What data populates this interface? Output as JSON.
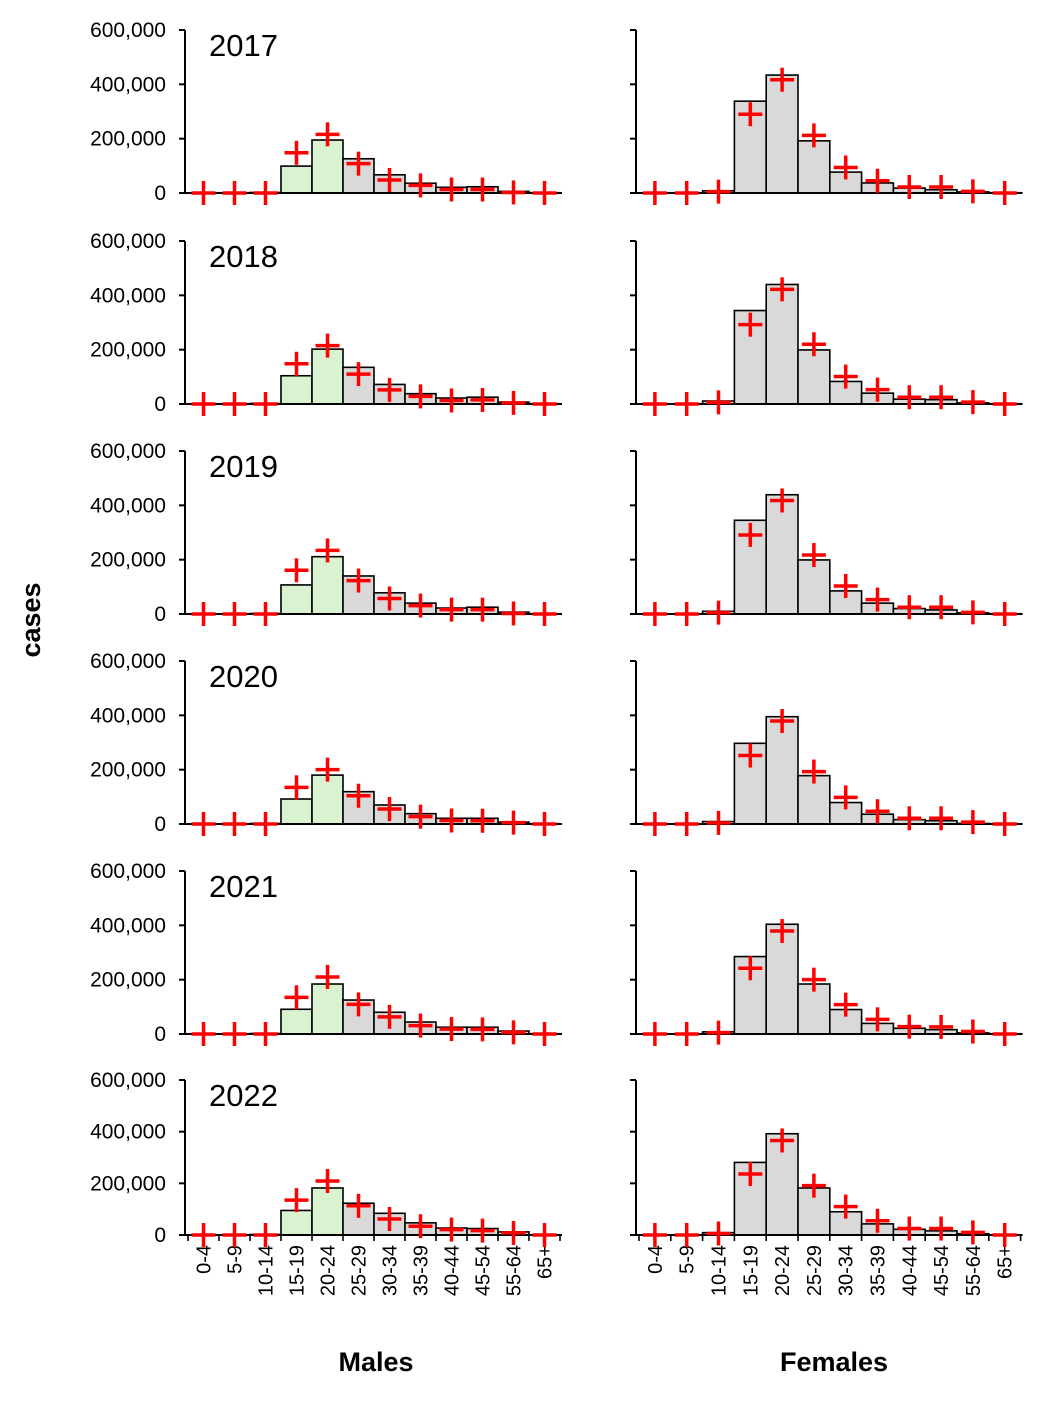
{
  "chart_data": {
    "type": "bar",
    "ylabel": "cases",
    "ylim": [
      0,
      600000
    ],
    "yticks": [
      0,
      200000,
      400000,
      600000
    ],
    "ytick_labels": [
      "0",
      "200,000",
      "400,000",
      "600,000"
    ],
    "grid": false,
    "categories": [
      "0-4",
      "5-9",
      "10-14",
      "15-19",
      "20-24",
      "25-29",
      "30-34",
      "35-39",
      "40-44",
      "45-54",
      "55-64",
      "65+"
    ],
    "columns": [
      {
        "title": "Males",
        "highlight_categories": [
          "15-19",
          "20-24"
        ]
      },
      {
        "title": "Females",
        "highlight_categories": []
      }
    ],
    "colors": {
      "bar": "#d9d9d9",
      "bar_highlight": "#d9f2d0",
      "bar_edge": "#000000",
      "marker": "#ff0000"
    },
    "marker": "plus (red)",
    "panels": [
      {
        "year": "2017",
        "males": {
          "bars": [
            0,
            0,
            2000,
            99000,
            195000,
            126000,
            67000,
            36000,
            21000,
            23000,
            6000,
            1000
          ],
          "markers": [
            0,
            0,
            0,
            148000,
            216000,
            108000,
            48000,
            28000,
            13000,
            13000,
            2000,
            0
          ]
        },
        "females": {
          "bars": [
            0,
            0,
            8000,
            338000,
            434000,
            192000,
            77000,
            37000,
            18000,
            12000,
            4000,
            1000
          ],
          "markers": [
            0,
            0,
            5000,
            290000,
            417000,
            212000,
            94000,
            45000,
            22000,
            22000,
            6000,
            0
          ]
        }
      },
      {
        "year": "2018",
        "males": {
          "bars": [
            0,
            0,
            2000,
            104000,
            202000,
            135000,
            72000,
            38000,
            22000,
            25000,
            7000,
            1000
          ],
          "markers": [
            0,
            0,
            0,
            148000,
            215000,
            110000,
            52000,
            28000,
            13000,
            15000,
            4000,
            0
          ]
        },
        "females": {
          "bars": [
            0,
            0,
            11000,
            344000,
            440000,
            199000,
            83000,
            40000,
            18000,
            16000,
            4000,
            1000
          ],
          "markers": [
            0,
            0,
            6000,
            292000,
            422000,
            220000,
            101000,
            53000,
            25000,
            25000,
            7000,
            0
          ]
        }
      },
      {
        "year": "2019",
        "males": {
          "bars": [
            0,
            0,
            2000,
            107000,
            211000,
            140000,
            78000,
            40000,
            22000,
            25000,
            7000,
            1000
          ],
          "markers": [
            0,
            0,
            0,
            161000,
            234000,
            123000,
            57000,
            31000,
            16000,
            16000,
            2000,
            0
          ]
        },
        "females": {
          "bars": [
            0,
            0,
            10000,
            345000,
            439000,
            199000,
            85000,
            40000,
            20000,
            15000,
            4000,
            1000
          ],
          "markers": [
            0,
            0,
            5000,
            291000,
            418000,
            217000,
            103000,
            53000,
            25000,
            25000,
            6000,
            0
          ]
        }
      },
      {
        "year": "2020",
        "males": {
          "bars": [
            0,
            0,
            2000,
            92000,
            180000,
            119000,
            70000,
            38000,
            21000,
            21000,
            7000,
            1000
          ],
          "markers": [
            0,
            0,
            0,
            135000,
            200000,
            104000,
            55000,
            27000,
            13000,
            12000,
            5000,
            0
          ]
        },
        "females": {
          "bars": [
            0,
            0,
            9000,
            297000,
            395000,
            178000,
            79000,
            36000,
            16000,
            12000,
            2000,
            1000
          ],
          "markers": [
            0,
            0,
            4000,
            252000,
            379000,
            193000,
            98000,
            47000,
            21000,
            21000,
            7000,
            0
          ]
        }
      },
      {
        "year": "2021",
        "males": {
          "bars": [
            0,
            0,
            2000,
            91000,
            184000,
            125000,
            80000,
            44000,
            25000,
            25000,
            11000,
            1000
          ],
          "markers": [
            0,
            0,
            0,
            135000,
            210000,
            109000,
            63000,
            31000,
            18000,
            17000,
            6000,
            0
          ]
        },
        "females": {
          "bars": [
            0,
            0,
            8000,
            285000,
            404000,
            184000,
            90000,
            39000,
            21000,
            16000,
            4000,
            1000
          ],
          "markers": [
            0,
            0,
            5000,
            242000,
            379000,
            200000,
            108000,
            54000,
            27000,
            26000,
            9000,
            0
          ]
        }
      },
      {
        "year": "2022",
        "males": {
          "bars": [
            0,
            0,
            2000,
            95000,
            182000,
            123000,
            84000,
            47000,
            27000,
            25000,
            12000,
            1000
          ],
          "markers": [
            0,
            0,
            0,
            135000,
            209000,
            113000,
            62000,
            34000,
            21000,
            17000,
            8000,
            0
          ]
        },
        "females": {
          "bars": [
            0,
            0,
            9000,
            281000,
            392000,
            182000,
            90000,
            43000,
            22000,
            16000,
            5000,
            1000
          ],
          "markers": [
            0,
            0,
            6000,
            236000,
            366000,
            191000,
            110000,
            55000,
            25000,
            25000,
            10000,
            0
          ]
        }
      }
    ]
  }
}
